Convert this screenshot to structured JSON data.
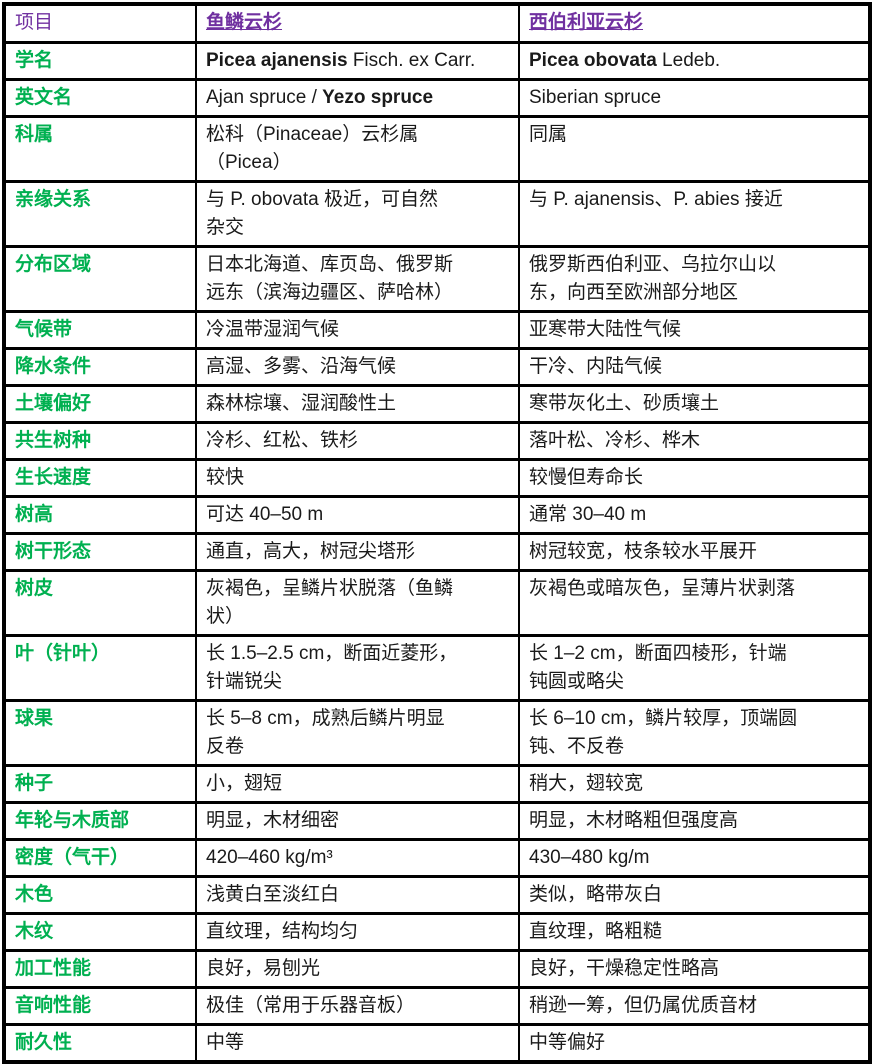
{
  "colors": {
    "label_green": "#00b050",
    "header_purple": "#7030a0",
    "body_text": "#1a1a1a",
    "border": "#000000",
    "background": "#ffffff"
  },
  "table": {
    "header": [
      {
        "text": "项目"
      },
      {
        "text": "鱼鳞云杉"
      },
      {
        "text": "西伯利亚云杉"
      }
    ],
    "rows": [
      {
        "label": "学名",
        "yezo": [
          {
            "t": "Picea ajanensis",
            "b": true
          },
          {
            "t": " Fisch. ex Carr."
          }
        ],
        "siberian": [
          {
            "t": "Picea obovata",
            "b": true
          },
          {
            "t": " Ledeb."
          }
        ]
      },
      {
        "label": "英文名",
        "yezo": [
          {
            "t": "Ajan spruce / "
          },
          {
            "t": "Yezo spruce",
            "b": true
          }
        ],
        "siberian": "Siberian spruce"
      },
      {
        "label": "科属",
        "yezo": "松科（Pinaceae）云杉属\n（Picea）",
        "siberian": "同属"
      },
      {
        "label": "亲缘关系",
        "yezo": "与 P. obovata 极近，可自然\n杂交",
        "siberian": "与 P. ajanensis、P. abies 接近"
      },
      {
        "label": "分布区域",
        "yezo": "日本北海道、库页岛、俄罗斯\n远东（滨海边疆区、萨哈林）",
        "siberian": "俄罗斯西伯利亚、乌拉尔山以\n东，向西至欧洲部分地区"
      },
      {
        "label": "气候带",
        "yezo": "冷温带湿润气候",
        "siberian": "亚寒带大陆性气候"
      },
      {
        "label": "降水条件",
        "yezo": "高湿、多雾、沿海气候",
        "siberian": "干冷、内陆气候"
      },
      {
        "label": "土壤偏好",
        "yezo": "森林棕壤、湿润酸性土",
        "siberian": "寒带灰化土、砂质壤土"
      },
      {
        "label": "共生树种",
        "yezo": "冷杉、红松、铁杉",
        "siberian": "落叶松、冷杉、桦木"
      },
      {
        "label": "生长速度",
        "yezo": "较快",
        "siberian": "较慢但寿命长"
      },
      {
        "label": "树高",
        "yezo": "可达 40–50 m",
        "siberian": "通常 30–40 m"
      },
      {
        "label": "树干形态",
        "yezo": "通直，高大，树冠尖塔形",
        "siberian": "树冠较宽，枝条较水平展开"
      },
      {
        "label": "树皮",
        "yezo": "灰褐色，呈鳞片状脱落（鱼鳞\n状）",
        "siberian": "灰褐色或暗灰色，呈薄片状剥落"
      },
      {
        "label": "叶（针叶）",
        "yezo": "长 1.5–2.5 cm，断面近菱形，\n针端锐尖",
        "siberian": "长 1–2 cm，断面四棱形，针端\n钝圆或略尖"
      },
      {
        "label": "球果",
        "yezo": "长 5–8 cm，成熟后鳞片明显\n反卷",
        "siberian": "长 6–10 cm，鳞片较厚，顶端圆\n钝、不反卷"
      },
      {
        "label": "种子",
        "yezo": "小，翅短",
        "siberian": "稍大，翅较宽"
      },
      {
        "label": "年轮与木质部",
        "yezo": "明显，木材细密",
        "siberian": "明显，木材略粗但强度高"
      },
      {
        "label": "密度（气干）",
        "yezo": "420–460 kg/m³",
        "siberian": "430–480 kg/m"
      },
      {
        "label": "木色",
        "yezo": "浅黄白至淡红白",
        "siberian": "类似，略带灰白"
      },
      {
        "label": "木纹",
        "yezo": "直纹理，结构均匀",
        "siberian": "直纹理，略粗糙"
      },
      {
        "label": "加工性能",
        "yezo": "良好，易刨光",
        "siberian": "良好，干燥稳定性略高"
      },
      {
        "label": "音响性能",
        "yezo": "极佳（常用于乐器音板）",
        "siberian": "稍逊一筹，但仍属优质音材"
      },
      {
        "label": "耐久性",
        "yezo": "中等",
        "siberian": "中等偏好"
      }
    ]
  }
}
